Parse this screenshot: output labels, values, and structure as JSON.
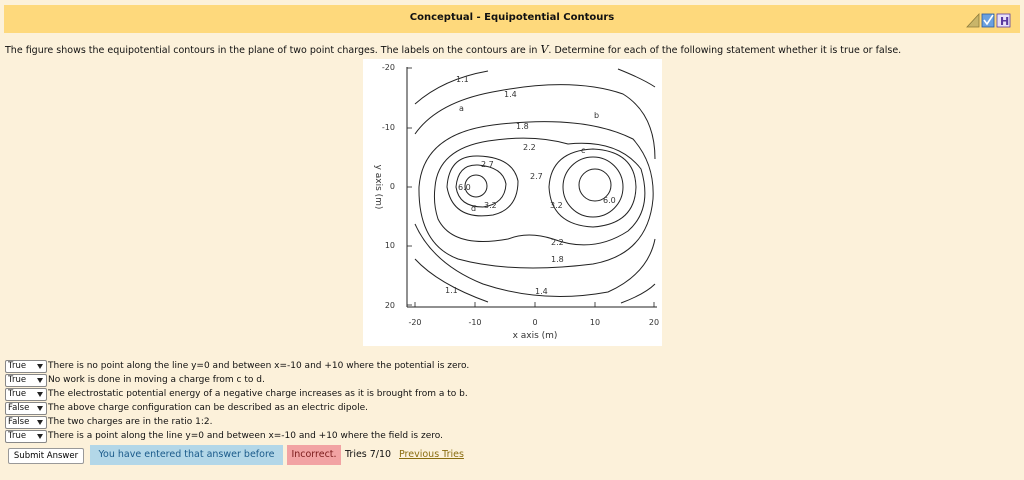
{
  "header": {
    "title": "Conceptual - Equipotential Contours"
  },
  "prompt": {
    "before": "The figure shows the equipotential contours in the plane of two point charges. The labels on the contours are in ",
    "unit": "V",
    "after": ". Determine for each of the following statement whether it is true or false."
  },
  "figure": {
    "x_axis_label": "x axis (m)",
    "y_axis_label": "y axis (m)",
    "x_ticks": [
      "-20",
      "-10",
      "0",
      "10",
      "20"
    ],
    "y_ticks": [
      "-20",
      "-10",
      "0",
      "10",
      "20"
    ],
    "contour_labels": [
      "1.1",
      "1.4",
      "a",
      "1.8",
      "2.2",
      "b",
      "c",
      "2.7",
      "2.7",
      "6.0",
      "d",
      "3.2",
      "3.2",
      "6.0",
      "2.2",
      "1.8",
      "1.1",
      "1.4"
    ]
  },
  "statements": [
    {
      "answer": "True",
      "text": "There is no point along the line y=0 and between x=-10 and +10 where the potential is zero."
    },
    {
      "answer": "True",
      "text": "No work is done in moving a charge from c to d."
    },
    {
      "answer": "True",
      "text": "The electrostatic potential energy of a negative charge increases as it is brought from a to b."
    },
    {
      "answer": "False",
      "text": "The above charge configuration can be described as an electric dipole."
    },
    {
      "answer": "False",
      "text": "The two charges are in the ratio 1:2."
    },
    {
      "answer": "True",
      "text": "There is a point along the line y=0 and between x=-10 and +10 where the field is zero."
    }
  ],
  "footer": {
    "submit": "Submit Answer",
    "status": "You have entered that answer before",
    "result": "Incorrect.",
    "tries": "Tries 7/10",
    "link": "Previous Tries"
  }
}
